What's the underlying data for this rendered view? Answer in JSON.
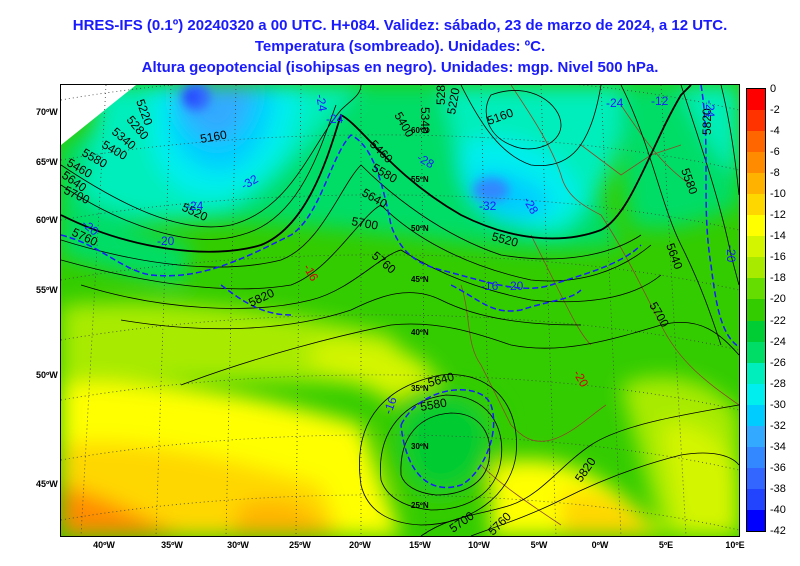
{
  "header": {
    "line1": "HRES-IFS (0.1º) 20240320 a 00 UTC. H+084. Validez: sábado, 23 de marzo de 2024, a 12 UTC.",
    "line2": "Temperatura (sombreado). Unidades: ºC.",
    "line3": "Altura geopotencial (isohipsas en negro). Unidades: mgp. Nivel 500 hPa."
  },
  "lat_labels_left": [
    "70ºW",
    "65ºW",
    "60ºW",
    "55ºW",
    "50ºW",
    "45ºW"
  ],
  "lon_labels_bottom": [
    "40ºW",
    "35ºW",
    "30ºW",
    "25ºW",
    "20ºW",
    "15ºW",
    "10ºW",
    "5ºW",
    "0ºW",
    "5ºE",
    "10ºE"
  ],
  "grid_lat_labels": [
    "60ºN",
    "55ºN",
    "50ºN",
    "45ºN",
    "40ºN",
    "35ºN",
    "30ºN",
    "25ºN"
  ],
  "colorbar": {
    "labels": [
      "0",
      "-2",
      "-4",
      "-6",
      "-8",
      "-10",
      "-12",
      "-14",
      "-16",
      "-18",
      "-20",
      "-22",
      "-24",
      "-26",
      "-28",
      "-30",
      "-32",
      "-34",
      "-36",
      "-38",
      "-40",
      "-42"
    ],
    "colors": [
      "#ff0000",
      "#ff3300",
      "#ff6600",
      "#ff8c00",
      "#ffb300",
      "#ffd700",
      "#ffff00",
      "#d4f500",
      "#a8eb00",
      "#66dd00",
      "#33cc00",
      "#00cc33",
      "#00dd66",
      "#00eebb",
      "#00eeee",
      "#00ccff",
      "#33aaff",
      "#3388ff",
      "#3366ff",
      "#2244ff",
      "#0000ff"
    ]
  },
  "contour_labels": [
    "5160",
    "5220",
    "5280",
    "5340",
    "5400",
    "5460",
    "5520",
    "5580",
    "5640",
    "5700",
    "5760",
    "5820",
    "5460",
    "5400",
    "5340",
    "5280",
    "5220",
    "5160",
    "5520",
    "5580",
    "5640",
    "5700",
    "5760",
    "5580",
    "5640",
    "5700",
    "5820",
    "5640",
    "5580",
    "5700",
    "5760",
    "5820"
  ],
  "temp_labels": [
    "-24",
    "-32",
    "-28",
    "-24",
    "-20",
    "-20",
    "-24",
    "-28",
    "-32",
    "-20",
    "-16",
    "-16",
    "-20",
    "-24",
    "-12",
    "-24",
    "-16",
    "-20"
  ]
}
